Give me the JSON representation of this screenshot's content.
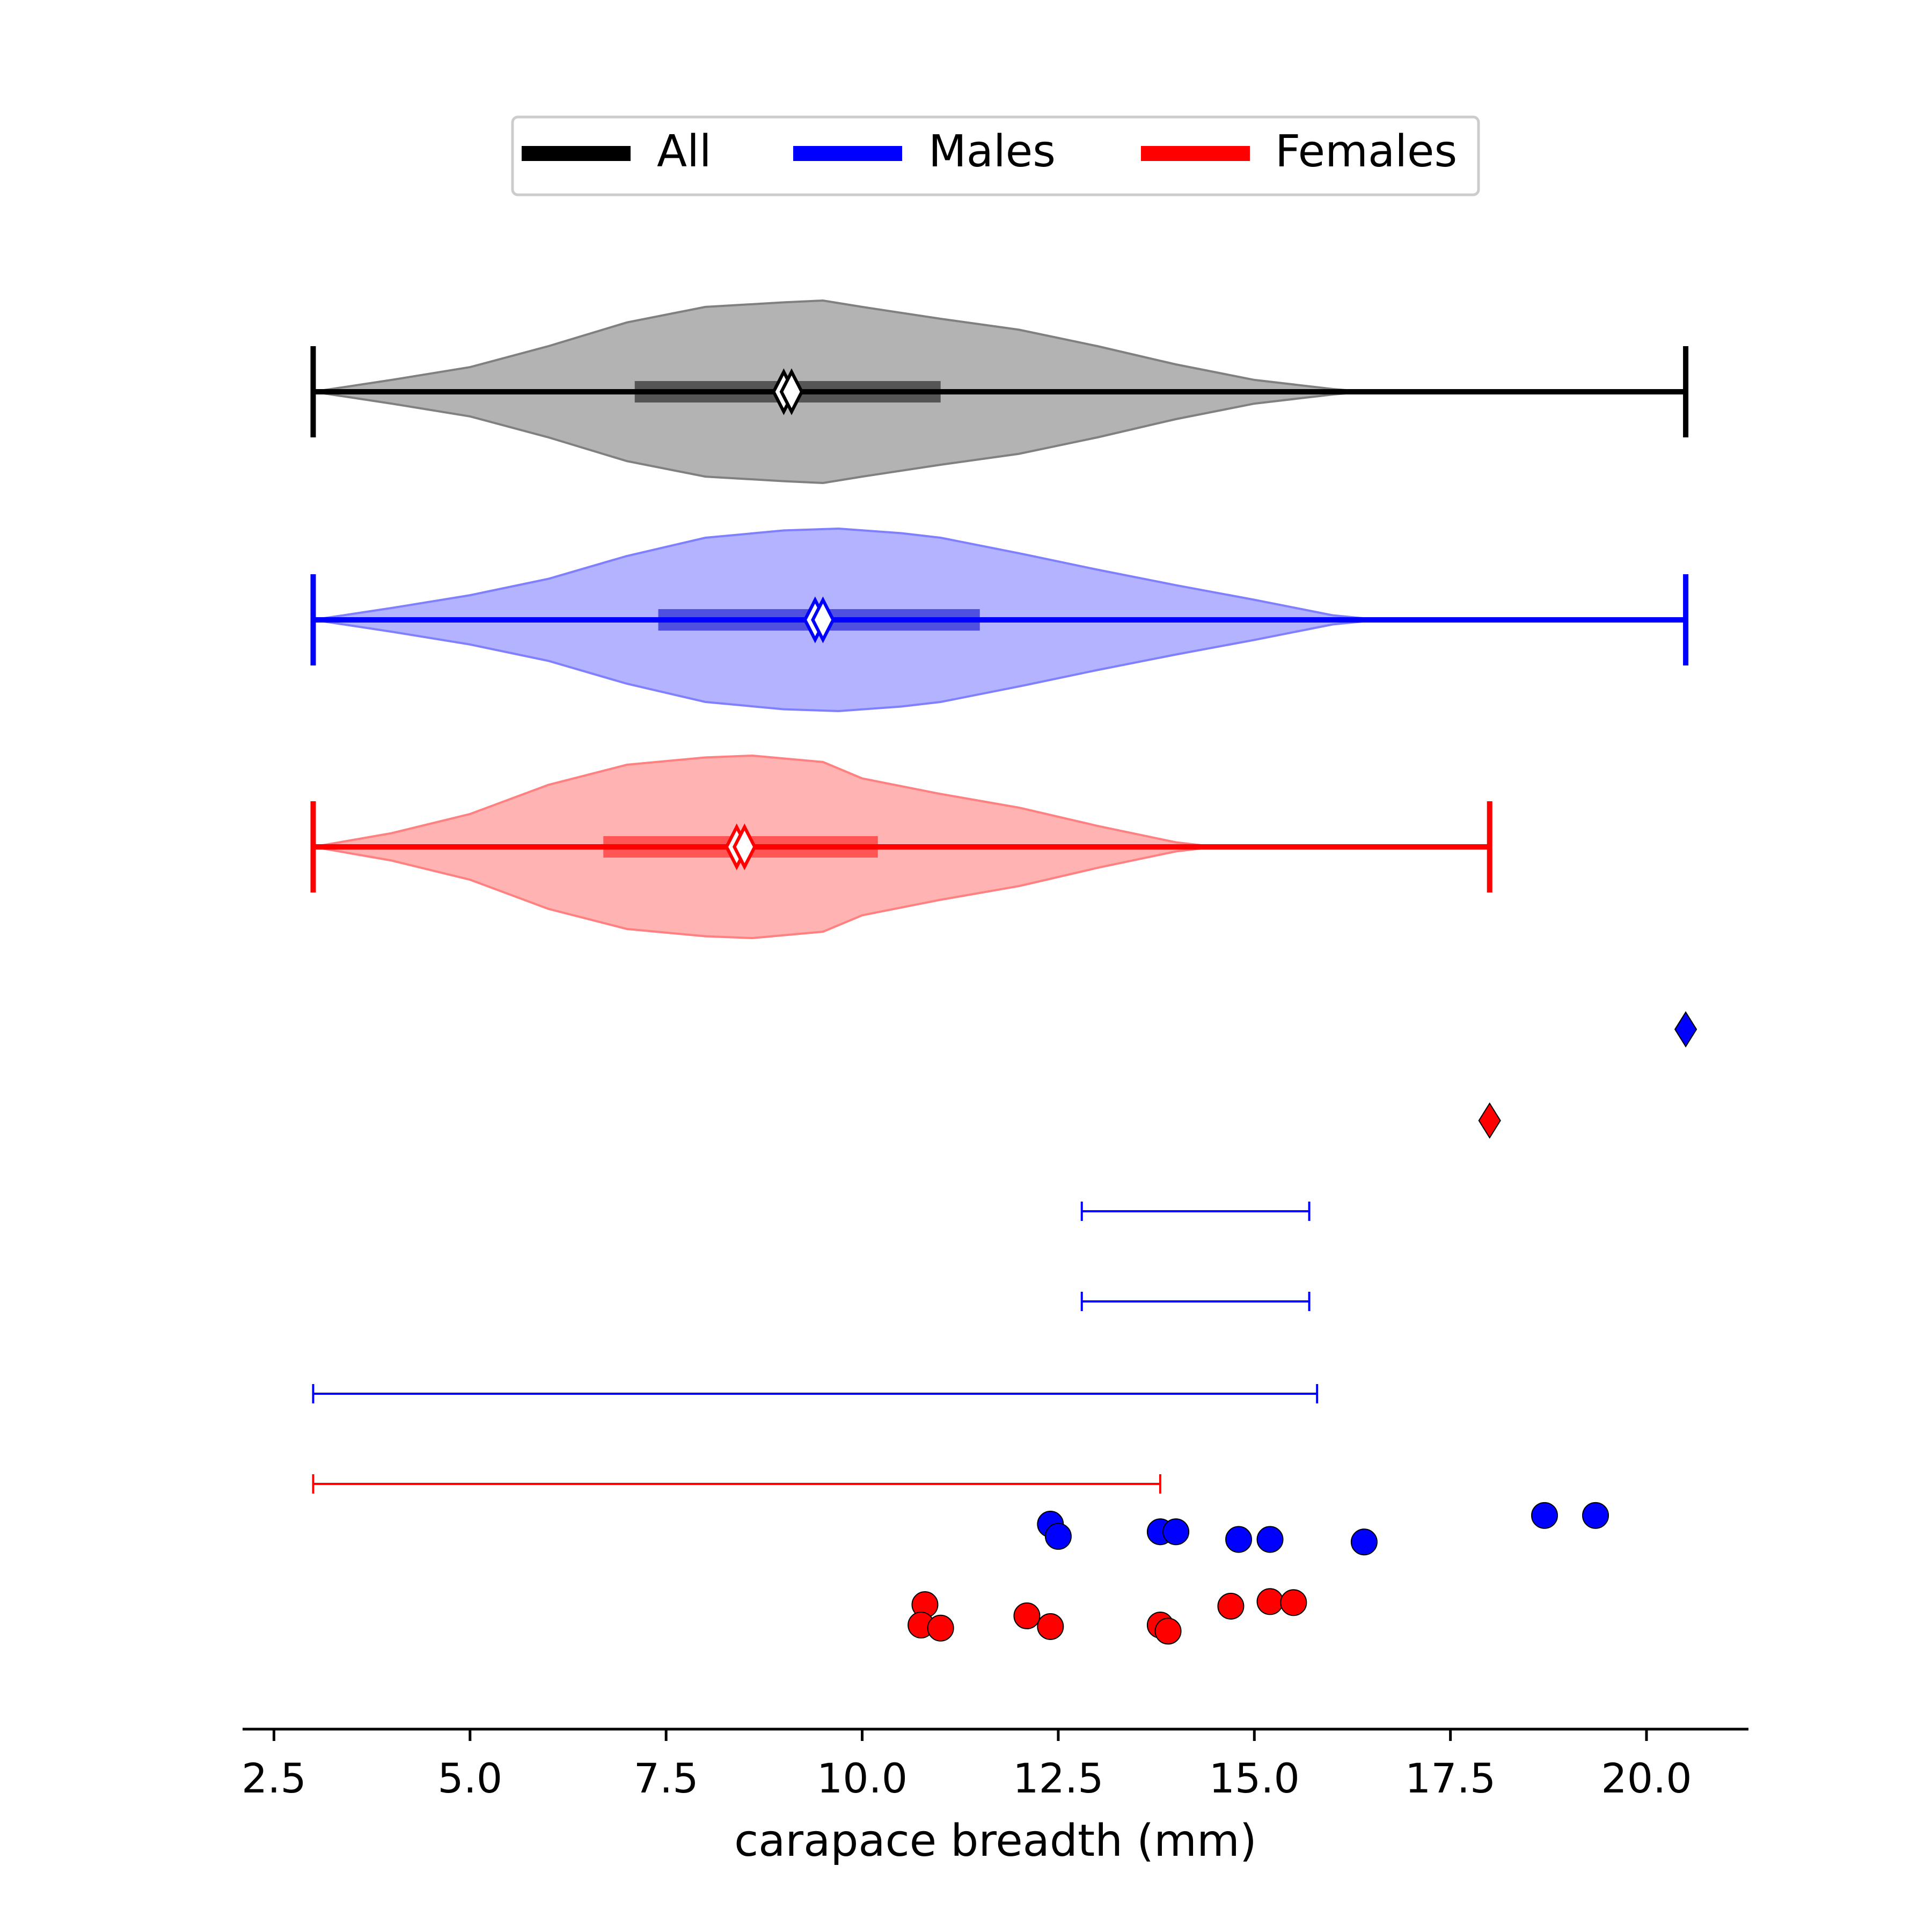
{
  "colors": {
    "All": "#000000",
    "Males": "#0000ff",
    "Females": "#ff0000",
    "All_fill": "#b3b3b3",
    "Males_fill": "#b3b3ff",
    "Females_fill": "#ffb3b3",
    "All_edge": "#808080",
    "Males_edge": "#8080ff",
    "Females_edge": "#ff8080",
    "All_iqr": "#555555",
    "Males_iqr": "#4f4fe0",
    "Females_iqr": "#ff5555"
  },
  "chart_data": {
    "type": "violin",
    "xlabel": "carapace breadth (mm)",
    "xlim": [
      2.1,
      21.3
    ],
    "x_ticks": [
      "2.5",
      "5.0",
      "7.5",
      "10.0",
      "12.5",
      "15.0",
      "17.5",
      "20.0"
    ],
    "x_tick_values": [
      2.5,
      5.0,
      7.5,
      10.0,
      12.5,
      15.0,
      17.5,
      20.0
    ],
    "legend": {
      "placement": "top-center",
      "entries": [
        "All",
        "Males",
        "Females"
      ]
    },
    "violins": [
      {
        "name": "All",
        "min": 3.0,
        "max": 20.5,
        "q1": 7.1,
        "q3": 11.0,
        "median": 9.0,
        "mean": 9.1,
        "density": [
          [
            3.0,
            0.0
          ],
          [
            4.0,
            0.13
          ],
          [
            5.0,
            0.27
          ],
          [
            6.0,
            0.5
          ],
          [
            7.0,
            0.76
          ],
          [
            8.0,
            0.93
          ],
          [
            9.0,
            0.98
          ],
          [
            9.5,
            1.0
          ],
          [
            10.0,
            0.93
          ],
          [
            11.0,
            0.8
          ],
          [
            12.0,
            0.68
          ],
          [
            13.0,
            0.5
          ],
          [
            14.0,
            0.3
          ],
          [
            15.0,
            0.13
          ],
          [
            16.0,
            0.03
          ],
          [
            16.4,
            0.0
          ]
        ]
      },
      {
        "name": "Males",
        "min": 3.0,
        "max": 20.5,
        "q1": 7.4,
        "q3": 11.5,
        "median": 9.4,
        "mean": 9.5,
        "density": [
          [
            3.0,
            0.0
          ],
          [
            4.0,
            0.13
          ],
          [
            5.0,
            0.27
          ],
          [
            6.0,
            0.45
          ],
          [
            7.0,
            0.7
          ],
          [
            8.0,
            0.9
          ],
          [
            9.0,
            0.98
          ],
          [
            9.7,
            1.0
          ],
          [
            10.5,
            0.95
          ],
          [
            11.0,
            0.9
          ],
          [
            12.0,
            0.73
          ],
          [
            13.0,
            0.55
          ],
          [
            14.0,
            0.38
          ],
          [
            15.0,
            0.22
          ],
          [
            16.0,
            0.05
          ],
          [
            16.6,
            0.0
          ]
        ]
      },
      {
        "name": "Females",
        "min": 3.0,
        "max": 18.0,
        "q1": 6.7,
        "q3": 10.2,
        "median": 8.4,
        "mean": 8.5,
        "density": [
          [
            3.0,
            0.0
          ],
          [
            4.0,
            0.15
          ],
          [
            5.0,
            0.36
          ],
          [
            6.0,
            0.68
          ],
          [
            7.0,
            0.9
          ],
          [
            8.0,
            0.98
          ],
          [
            8.6,
            1.0
          ],
          [
            9.5,
            0.93
          ],
          [
            10.0,
            0.75
          ],
          [
            11.0,
            0.58
          ],
          [
            12.0,
            0.43
          ],
          [
            13.0,
            0.23
          ],
          [
            14.0,
            0.05
          ],
          [
            14.5,
            0.0
          ]
        ]
      }
    ],
    "markers": [
      {
        "series": "Males",
        "x": 20.5
      },
      {
        "series": "Females",
        "x": 18.0
      }
    ],
    "ranges": [
      {
        "series": "Males",
        "x_start": 12.8,
        "x_end": 15.7
      },
      {
        "series": "Males",
        "x_start": 12.8,
        "x_end": 15.7
      },
      {
        "series": "Males",
        "x_start": 3.0,
        "x_end": 15.8
      },
      {
        "series": "Females",
        "x_start": 3.0,
        "x_end": 13.8
      }
    ],
    "points": [
      {
        "series": "Males",
        "x": 12.4,
        "y": 0.0
      },
      {
        "series": "Males",
        "x": 12.5,
        "y": 0.24
      },
      {
        "series": "Males",
        "x": 13.8,
        "y": 0.15
      },
      {
        "series": "Males",
        "x": 14.0,
        "y": 0.15
      },
      {
        "series": "Males",
        "x": 14.8,
        "y": 0.3
      },
      {
        "series": "Males",
        "x": 15.2,
        "y": 0.3
      },
      {
        "series": "Males",
        "x": 16.4,
        "y": 0.35
      },
      {
        "series": "Males",
        "x": 18.7,
        "y": -0.17
      },
      {
        "series": "Males",
        "x": 19.35,
        "y": -0.17
      },
      {
        "series": "Females",
        "x": 10.8,
        "y": 0.0
      },
      {
        "series": "Females",
        "x": 10.75,
        "y": 0.4
      },
      {
        "series": "Females",
        "x": 11.0,
        "y": 0.46
      },
      {
        "series": "Females",
        "x": 12.1,
        "y": 0.22
      },
      {
        "series": "Females",
        "x": 12.4,
        "y": 0.43
      },
      {
        "series": "Females",
        "x": 13.8,
        "y": 0.4
      },
      {
        "series": "Females",
        "x": 13.9,
        "y": 0.52
      },
      {
        "series": "Females",
        "x": 14.7,
        "y": 0.03
      },
      {
        "series": "Females",
        "x": 15.2,
        "y": -0.06
      },
      {
        "series": "Females",
        "x": 15.5,
        "y": -0.04
      }
    ]
  }
}
